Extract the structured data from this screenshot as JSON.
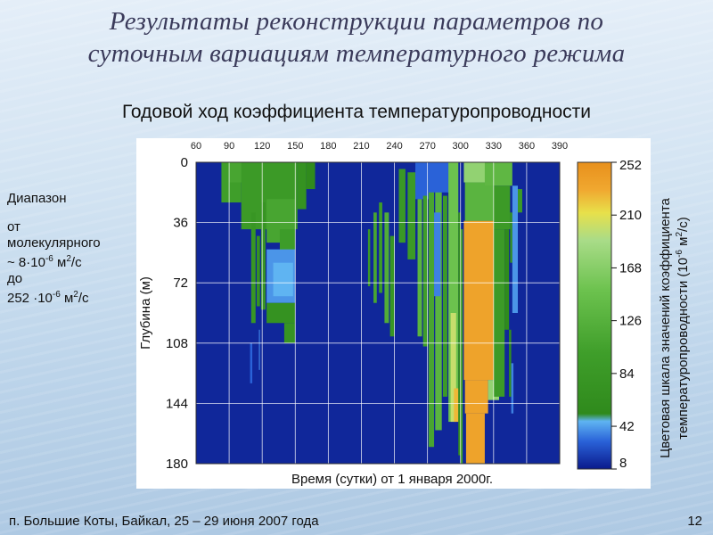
{
  "slide": {
    "title_line1": "Результаты реконструкции параметров по",
    "title_line2": "суточным вариациям температурного режима",
    "subtitle": "Годовой ход коэффициента температуропроводности",
    "footer_location": "п. Большие Коты, Байкал,  25 – 29 июня 2007  года",
    "slide_number": "12"
  },
  "range_note": {
    "line1": "Диапазон",
    "line2": "от",
    "line3": "молекулярного",
    "line4_prefix": "~ 8·10",
    "line4_exp": "-6",
    "line4_unit": " м",
    "line4_sq": "2",
    "line4_tail": "/с",
    "line5": "до",
    "line6_prefix": " 252 ·10",
    "line6_exp": "-6",
    "line6_unit": " м",
    "line6_sq": "2",
    "line6_tail": "/с"
  },
  "chart_data": {
    "type": "heatmap",
    "xlabel": "Время (сутки) от 1 января 2000г.",
    "ylabel": "Глубина (м)",
    "x_ticks": [
      60,
      90,
      120,
      150,
      180,
      210,
      240,
      270,
      300,
      330,
      360,
      390
    ],
    "y_ticks": [
      0,
      36,
      72,
      108,
      144,
      180
    ],
    "xlim": [
      60,
      390
    ],
    "ylim": [
      0,
      180
    ],
    "grid": true,
    "colorbar": {
      "label_line1": "Цветовая шкала значений коэффициента",
      "label_line2": "температуропроводности (10",
      "label_exp": "-6",
      "label_unit": " м",
      "label_sq": "2",
      "label_tail": "/с)",
      "ticks": [
        252,
        210,
        168,
        126,
        84,
        42,
        8
      ],
      "range": [
        8,
        252
      ],
      "stops": [
        {
          "value": 8,
          "color": "#0a1a8c"
        },
        {
          "value": 30,
          "color": "#2a62d8"
        },
        {
          "value": 46,
          "color": "#5fb4f2"
        },
        {
          "value": 52,
          "color": "#2f8a1c"
        },
        {
          "value": 100,
          "color": "#3f9e2a"
        },
        {
          "value": 150,
          "color": "#6cc24e"
        },
        {
          "value": 190,
          "color": "#a9dc88"
        },
        {
          "value": 212,
          "color": "#e8e04a"
        },
        {
          "value": 230,
          "color": "#f0a830"
        },
        {
          "value": 252,
          "color": "#e8901c"
        }
      ]
    },
    "background_value": 12,
    "cells": [
      {
        "x0": 83,
        "x1": 101,
        "y0": 0,
        "y1": 24,
        "value": 100
      },
      {
        "x0": 90,
        "x1": 130,
        "y0": 0,
        "y1": 12,
        "value": 110
      },
      {
        "x0": 101,
        "x1": 152,
        "y0": 0,
        "y1": 40,
        "value": 90
      },
      {
        "x0": 152,
        "x1": 160,
        "y0": 0,
        "y1": 28,
        "value": 70
      },
      {
        "x0": 160,
        "x1": 168,
        "y0": 0,
        "y1": 16,
        "value": 55
      },
      {
        "x0": 124,
        "x1": 150,
        "y0": 22,
        "y1": 48,
        "value": 110
      },
      {
        "x0": 136,
        "x1": 150,
        "y0": 40,
        "y1": 60,
        "value": 95
      },
      {
        "x0": 110,
        "x1": 114,
        "y0": 30,
        "y1": 96,
        "value": 80
      },
      {
        "x0": 115,
        "x1": 118,
        "y0": 44,
        "y1": 86,
        "value": 70
      },
      {
        "x0": 119,
        "x1": 123,
        "y0": 24,
        "y1": 88,
        "value": 75
      },
      {
        "x0": 124,
        "x1": 150,
        "y0": 52,
        "y1": 84,
        "value": 40
      },
      {
        "x0": 130,
        "x1": 148,
        "y0": 60,
        "y1": 80,
        "value": 46
      },
      {
        "x0": 124,
        "x1": 150,
        "y0": 84,
        "y1": 96,
        "value": 70
      },
      {
        "x0": 140,
        "x1": 150,
        "y0": 96,
        "y1": 108,
        "value": 75
      },
      {
        "x0": 109,
        "x1": 111,
        "y0": 108,
        "y1": 132,
        "value": 30
      },
      {
        "x0": 117,
        "x1": 118,
        "y0": 100,
        "y1": 124,
        "value": 36
      },
      {
        "x0": 216,
        "x1": 218,
        "y0": 40,
        "y1": 74,
        "value": 90
      },
      {
        "x0": 221,
        "x1": 224,
        "y0": 30,
        "y1": 84,
        "value": 110
      },
      {
        "x0": 226,
        "x1": 229,
        "y0": 24,
        "y1": 78,
        "value": 95
      },
      {
        "x0": 231,
        "x1": 235,
        "y0": 30,
        "y1": 96,
        "value": 120
      },
      {
        "x0": 236,
        "x1": 240,
        "y0": 44,
        "y1": 104,
        "value": 80
      },
      {
        "x0": 244,
        "x1": 250,
        "y0": 4,
        "y1": 48,
        "value": 85
      },
      {
        "x0": 252,
        "x1": 259,
        "y0": 6,
        "y1": 58,
        "value": 90
      },
      {
        "x0": 259,
        "x1": 271,
        "y0": 0,
        "y1": 22,
        "value": 30
      },
      {
        "x0": 261,
        "x1": 265,
        "y0": 22,
        "y1": 104,
        "value": 130
      },
      {
        "x0": 266,
        "x1": 270,
        "y0": 20,
        "y1": 110,
        "value": 100
      },
      {
        "x0": 271,
        "x1": 276,
        "y0": 10,
        "y1": 170,
        "value": 110
      },
      {
        "x0": 277,
        "x1": 283,
        "y0": 6,
        "y1": 160,
        "value": 130
      },
      {
        "x0": 284,
        "x1": 288,
        "y0": 20,
        "y1": 140,
        "value": 90
      },
      {
        "x0": 271,
        "x1": 296,
        "y0": 0,
        "y1": 18,
        "value": 30
      },
      {
        "x0": 276,
        "x1": 282,
        "y0": 30,
        "y1": 80,
        "value": 36
      },
      {
        "x0": 289,
        "x1": 298,
        "y0": 0,
        "y1": 155,
        "value": 150
      },
      {
        "x0": 291,
        "x1": 296,
        "y0": 90,
        "y1": 155,
        "value": 200
      },
      {
        "x0": 294,
        "x1": 298,
        "y0": 135,
        "y1": 155,
        "value": 225
      },
      {
        "x0": 298,
        "x1": 300,
        "y0": 30,
        "y1": 175,
        "value": 60
      },
      {
        "x0": 300,
        "x1": 302,
        "y0": 40,
        "y1": 180,
        "value": 100
      },
      {
        "x0": 303,
        "x1": 329,
        "y0": 0,
        "y1": 12,
        "value": 175
      },
      {
        "x0": 304,
        "x1": 330,
        "y0": 12,
        "y1": 35,
        "value": 130
      },
      {
        "x0": 322,
        "x1": 347,
        "y0": 0,
        "y1": 14,
        "value": 135
      },
      {
        "x0": 330,
        "x1": 345,
        "y0": 14,
        "y1": 40,
        "value": 90
      },
      {
        "x0": 303,
        "x1": 330,
        "y0": 35,
        "y1": 130,
        "value": 235
      },
      {
        "x0": 304,
        "x1": 325,
        "y0": 130,
        "y1": 150,
        "value": 235
      },
      {
        "x0": 305,
        "x1": 322,
        "y0": 150,
        "y1": 180,
        "value": 235
      },
      {
        "x0": 325,
        "x1": 335,
        "y0": 130,
        "y1": 142,
        "value": 175
      },
      {
        "x0": 330,
        "x1": 340,
        "y0": 40,
        "y1": 140,
        "value": 90
      },
      {
        "x0": 340,
        "x1": 344,
        "y0": 40,
        "y1": 100,
        "value": 55
      },
      {
        "x0": 345,
        "x1": 347,
        "y0": 30,
        "y1": 60,
        "value": 70
      },
      {
        "x0": 344,
        "x1": 346,
        "y0": 100,
        "y1": 140,
        "value": 60
      },
      {
        "x0": 346,
        "x1": 348,
        "y0": 120,
        "y1": 150,
        "value": 36
      },
      {
        "x0": 347,
        "x1": 352,
        "y0": 14,
        "y1": 90,
        "value": 40
      },
      {
        "x0": 352,
        "x1": 356,
        "y0": 16,
        "y1": 30,
        "value": 90
      }
    ]
  }
}
